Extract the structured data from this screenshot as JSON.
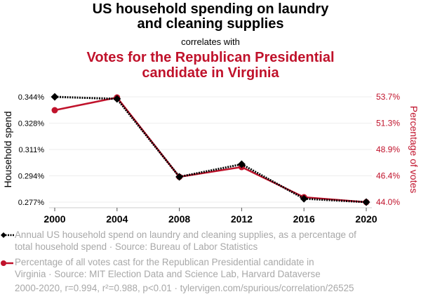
{
  "header": {
    "title_line1": "US household spending on laundry",
    "title_line2": "and cleaning supplies",
    "subtitle": "correlates with",
    "title2_line1": "Votes for the Republican Presidential",
    "title2_line2": "candidate in Virginia"
  },
  "colors": {
    "series1": "#000000",
    "series2": "#c0122b",
    "grid": "#eeeeee",
    "axis": "#cccccc",
    "legend_text": "#a8a8a8"
  },
  "chart_data": {
    "type": "line",
    "x": [
      2000,
      2004,
      2008,
      2012,
      2016,
      2020
    ],
    "x_tick_labels": [
      "2000",
      "2004",
      "2008",
      "2012",
      "2016",
      "2020"
    ],
    "left_axis": {
      "label": "Household spend",
      "ticks": [
        "0.344%",
        "0.328%",
        "0.311%",
        "0.294%",
        "0.277%"
      ],
      "range": [
        0.277,
        0.344
      ]
    },
    "right_axis": {
      "label": "Percentage of votes",
      "ticks": [
        "53.7%",
        "51.3%",
        "48.9%",
        "46.4%",
        "44.0%"
      ],
      "range": [
        44.0,
        53.7
      ]
    },
    "series": [
      {
        "name": "Annual US household spend on laundry and cleaning supplies, as a percentage of total household spend",
        "axis": "left",
        "marker": "diamond",
        "style": "dotted",
        "values": [
          0.344,
          0.3427,
          0.2931,
          0.3011,
          0.2792,
          0.277
        ]
      },
      {
        "name": "Percentage of all votes cast for the Republican Presidential candidate in Virginia",
        "axis": "right",
        "marker": "circle",
        "style": "solid",
        "values": [
          52.47,
          53.64,
          46.33,
          47.23,
          44.45,
          44.0
        ]
      }
    ],
    "grid": true
  },
  "legend": {
    "item1_line1": "Annual US household spend on laundry and cleaning supplies, as a percentage of",
    "item1_line2": "total household spend · Source: Bureau of Labor Statistics",
    "item2_line1": "Percentage of all votes cast for the Republican Presidential candidate in",
    "item2_line2": "Virginia · Source: MIT Election Data and Science Lab, Harvard Dataverse"
  },
  "footer": "2000-2020, r=0.994, r²=0.988, p<0.01 · tylervigen.com/spurious/correlation/26525"
}
